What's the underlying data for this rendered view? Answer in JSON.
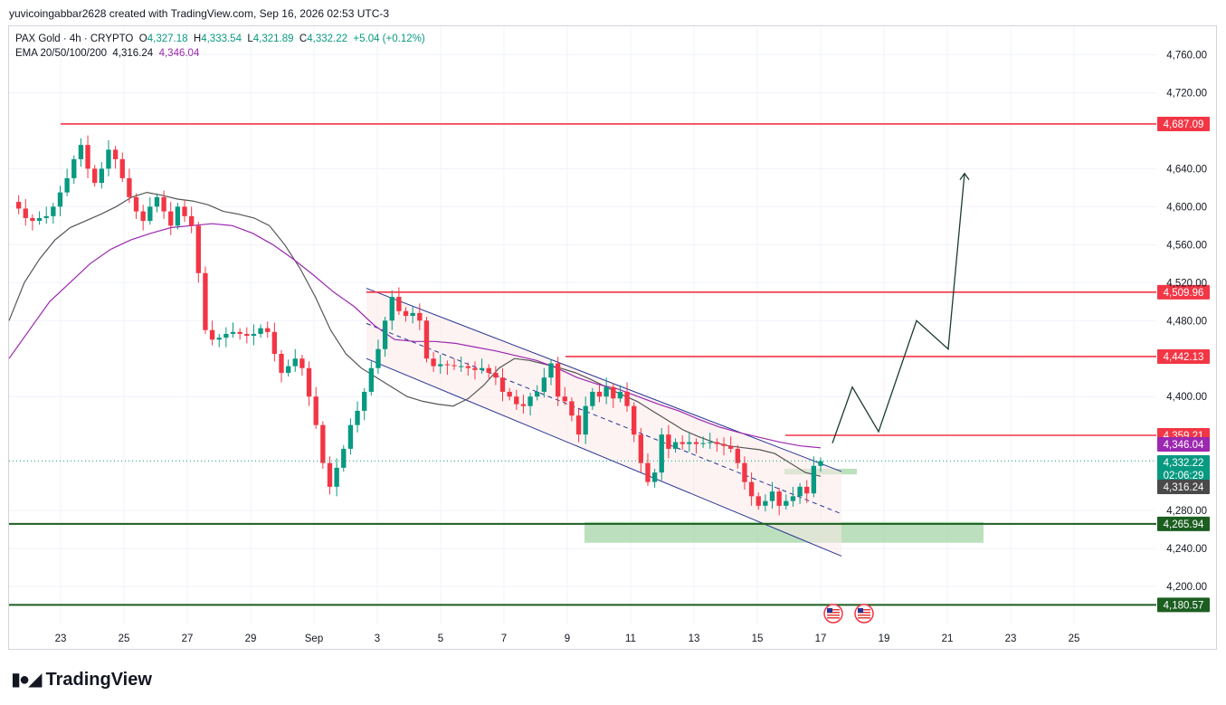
{
  "header": {
    "text": "yuvicoingabbar2628 created with TradingView.com, Sep 16, 2026 02:53 UTC-3"
  },
  "legend": {
    "symbol": "PAX Gold · 4h · CRYPTO",
    "o_label": "O",
    "o": "4,327.18",
    "h_label": "H",
    "h": "4,333.54",
    "l_label": "L",
    "l": "4,321.89",
    "c_label": "C",
    "c": "4,332.22",
    "change": "+5.04 (+0.12%)",
    "ema_label": "EMA 20/50/100/200",
    "ema1": "4,316.24",
    "ema2": "4,346.04"
  },
  "footer": {
    "brand": "TradingView",
    "logo_icon": "tradingview-logo-icon"
  },
  "colors": {
    "up": "#089981",
    "down": "#f23645",
    "resistance": "#f23645",
    "support": "#1b5e20",
    "channel": "#283593",
    "ema_fast": "#555555",
    "ema_slow": "#9c27b0",
    "zone": "#a5d6a7",
    "projection": "#1b3b2f"
  },
  "chart_data": {
    "type": "candlestick",
    "symbol": "PAX Gold",
    "interval": "4h",
    "ylim": [
      4160,
      4790
    ],
    "y_ticks": [
      4200,
      4240,
      4280,
      4400,
      4480,
      4520,
      4560,
      4600,
      4640,
      4720,
      4760
    ],
    "y_tick_labels": [
      "4,200.00",
      "4,240.00",
      "4,280.00",
      "4,400.00",
      "4,480.00",
      "4,520.00",
      "4,560.00",
      "4,600.00",
      "4,640.00",
      "4,720.00",
      "4,760.00"
    ],
    "x_ticks": [
      "23",
      "25",
      "27",
      "29",
      "Sep",
      "3",
      "5",
      "7",
      "9",
      "11",
      "13",
      "15",
      "17",
      "19",
      "21",
      "23",
      "25"
    ],
    "grid": true,
    "horizontal_levels": [
      {
        "value": 4687.09,
        "label": "4,687.09",
        "color": "#f23645"
      },
      {
        "value": 4509.96,
        "label": "4,509.96",
        "color": "#f23645"
      },
      {
        "value": 4442.13,
        "label": "4,442.13",
        "color": "#f23645"
      },
      {
        "value": 4359.21,
        "label": "4,359.21",
        "color": "#f23645"
      },
      {
        "value": 4265.94,
        "label": "4,265.94",
        "color": "#1b5e20"
      },
      {
        "value": 4180.57,
        "label": "4,180.57",
        "color": "#1b5e20"
      }
    ],
    "price_labels": [
      {
        "value": 4346.04,
        "label": "4,346.04",
        "color": "#9c27b0"
      },
      {
        "value": 4332.22,
        "label": "4,332.22",
        "sub": "02:06:29",
        "color": "#089981"
      },
      {
        "value": 4316.24,
        "label": "4,316.24",
        "color": "#4a4a4a"
      }
    ],
    "last_price": 4332.22,
    "close_series": [
      4605,
      4598,
      4588,
      4585,
      4588,
      4590,
      4600,
      4615,
      4630,
      4650,
      4665,
      4640,
      4625,
      4640,
      4660,
      4650,
      4630,
      4610,
      4595,
      4585,
      4600,
      4610,
      4595,
      4580,
      4600,
      4590,
      4580,
      4530,
      4470,
      4460,
      4462,
      4466,
      4468,
      4466,
      4464,
      4466,
      4472,
      4468,
      4445,
      4425,
      4432,
      4440,
      4430,
      4400,
      4370,
      4330,
      4305,
      4325,
      4345,
      4370,
      4385,
      4405,
      4430,
      4450,
      4480,
      4505,
      4490,
      4485,
      4488,
      4480,
      4440,
      4432,
      4434,
      4433,
      4432,
      4432,
      4430,
      4428,
      4430,
      4425,
      4420,
      4405,
      4400,
      4392,
      4390,
      4400,
      4405,
      4420,
      4435,
      4400,
      4395,
      4380,
      4360,
      4390,
      4405,
      4400,
      4410,
      4398,
      4405,
      4390,
      4360,
      4330,
      4310,
      4320,
      4360,
      4345,
      4352,
      4350,
      4352,
      4350,
      4351,
      4352,
      4350,
      4348,
      4345,
      4330,
      4310,
      4295,
      4285,
      4290,
      4300,
      4285,
      4290,
      4295,
      4305,
      4298,
      4327,
      4332
    ],
    "ema_fast_series": [
      4480,
      4520,
      4545,
      4565,
      4578,
      4585,
      4592,
      4600,
      4610,
      4615,
      4612,
      4608,
      4606,
      4602,
      4595,
      4592,
      4588,
      4580,
      4560,
      4535,
      4505,
      4470,
      4445,
      4430,
      4420,
      4410,
      4400,
      4395,
      4392,
      4390,
      4398,
      4412,
      4430,
      4440,
      4438,
      4434,
      4430,
      4425,
      4418,
      4410,
      4402,
      4395,
      4385,
      4375,
      4365,
      4358,
      4352,
      4348,
      4346,
      4344,
      4340,
      4330,
      4320,
      4316
    ],
    "ema_slow_series": [
      4440,
      4470,
      4500,
      4520,
      4540,
      4555,
      4565,
      4572,
      4578,
      4580,
      4582,
      4580,
      4572,
      4560,
      4545,
      4528,
      4510,
      4495,
      4475,
      4460,
      4458,
      4458,
      4456,
      4452,
      4448,
      4443,
      4438,
      4430,
      4420,
      4413,
      4408,
      4400,
      4392,
      4385,
      4376,
      4368,
      4362,
      4357,
      4352,
      4348,
      4346
    ],
    "descending_channel": {
      "upper_start_date": "Aug 31",
      "upper_start": 4514,
      "upper_end_date": "Sep 16",
      "upper_end": 4321,
      "lower_start_date": "Aug 31",
      "lower_start": 4440,
      "lower_end_date": "Sep 16",
      "lower_end": 4232
    },
    "projection_path": [
      4351,
      4410,
      4363,
      4480,
      4450,
      4635
    ],
    "demand_zones": [
      {
        "from": 4246,
        "to": 4268
      },
      {
        "from": 4318,
        "to": 4324
      }
    ],
    "event_icons": [
      "us-flag-icon",
      "us-flag-icon"
    ]
  }
}
